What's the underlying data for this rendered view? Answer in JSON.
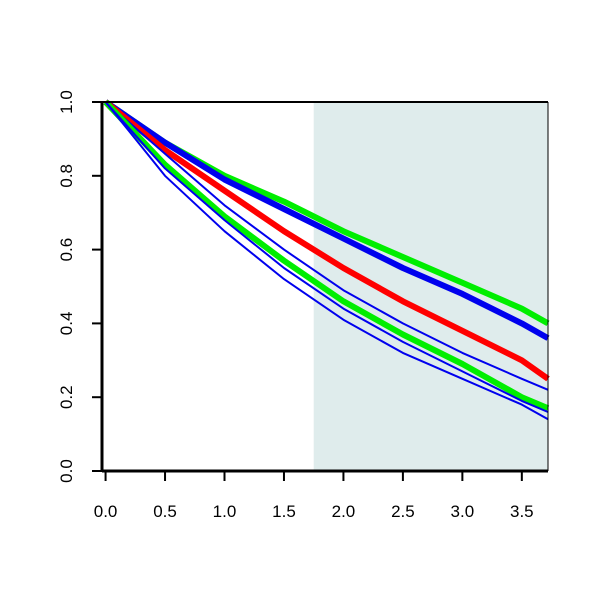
{
  "chart_data": {
    "type": "line",
    "title": "",
    "xlabel": "",
    "ylabel": "",
    "xlim": [
      -0.03,
      3.72
    ],
    "ylim": [
      0.0,
      1.0
    ],
    "x_ticks": [
      0.0,
      0.5,
      1.0,
      1.5,
      2.0,
      2.5,
      3.0,
      3.5
    ],
    "x_tick_labels": [
      "0.0",
      "0.5",
      "1.0",
      "1.5",
      "2.0",
      "2.5",
      "3.0",
      "3.5"
    ],
    "y_ticks": [
      0.0,
      0.2,
      0.4,
      0.6,
      0.8,
      1.0
    ],
    "y_tick_labels": [
      "0.0",
      "0.2",
      "0.4",
      "0.6",
      "0.8",
      "1.0"
    ],
    "grid": false,
    "legend": "none",
    "shaded_region": {
      "x_start": 1.75,
      "x_end": 3.72,
      "color": "#dfecec"
    },
    "series": [
      {
        "role": "upper-green",
        "color": "#00ee00",
        "weight": "thick",
        "x": [
          0.0,
          0.5,
          1.0,
          1.5,
          2.0,
          2.5,
          3.0,
          3.5,
          3.72
        ],
        "y": [
          1.0,
          0.89,
          0.8,
          0.73,
          0.65,
          0.58,
          0.51,
          0.44,
          0.4
        ]
      },
      {
        "role": "upper-blue",
        "color": "#0000ee",
        "weight": "thick",
        "x": [
          0.0,
          0.5,
          1.0,
          1.5,
          2.0,
          2.5,
          3.0,
          3.5,
          3.72
        ],
        "y": [
          1.0,
          0.89,
          0.79,
          0.71,
          0.63,
          0.55,
          0.48,
          0.4,
          0.36
        ]
      },
      {
        "role": "center-red",
        "color": "#ff0000",
        "weight": "thick",
        "x": [
          0.0,
          0.5,
          1.0,
          1.5,
          2.0,
          2.5,
          3.0,
          3.5,
          3.72
        ],
        "y": [
          1.0,
          0.87,
          0.76,
          0.65,
          0.55,
          0.46,
          0.38,
          0.3,
          0.25
        ]
      },
      {
        "role": "mid-blue",
        "color": "#0000ee",
        "weight": "thin",
        "x": [
          0.0,
          0.5,
          1.0,
          1.5,
          2.0,
          2.5,
          3.0,
          3.5,
          3.72
        ],
        "y": [
          1.0,
          0.86,
          0.72,
          0.6,
          0.49,
          0.4,
          0.32,
          0.25,
          0.22
        ]
      },
      {
        "role": "lower-green",
        "color": "#00ee00",
        "weight": "thick",
        "x": [
          0.0,
          0.5,
          1.0,
          1.5,
          2.0,
          2.5,
          3.0,
          3.5,
          3.72
        ],
        "y": [
          1.0,
          0.83,
          0.69,
          0.57,
          0.46,
          0.37,
          0.29,
          0.2,
          0.17
        ]
      },
      {
        "role": "lower-blue-1",
        "color": "#0000ee",
        "weight": "thin",
        "x": [
          0.0,
          0.5,
          1.0,
          1.5,
          2.0,
          2.5,
          3.0,
          3.5,
          3.72
        ],
        "y": [
          1.0,
          0.82,
          0.68,
          0.55,
          0.44,
          0.35,
          0.27,
          0.19,
          0.16
        ]
      },
      {
        "role": "lower-blue-2",
        "color": "#0000ee",
        "weight": "thin",
        "x": [
          0.0,
          0.5,
          1.0,
          1.5,
          2.0,
          2.5,
          3.0,
          3.5,
          3.72
        ],
        "y": [
          1.0,
          0.8,
          0.65,
          0.52,
          0.41,
          0.32,
          0.25,
          0.18,
          0.14
        ]
      }
    ]
  }
}
